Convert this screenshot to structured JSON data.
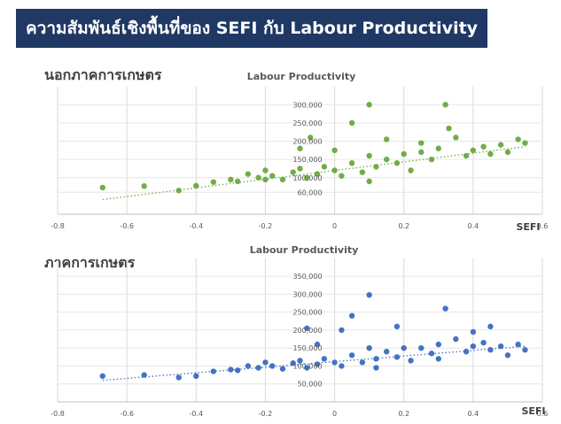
{
  "header": {
    "title": "ความสัมพันธ์เชิงพื้นที่ของ SEFI กับ Labour Productivity"
  },
  "colors": {
    "header_bg": "#1f3864",
    "series_nonagri": "#70ad47",
    "series_agri": "#4472c4"
  },
  "chart_data": [
    {
      "type": "scatter",
      "section_label": "นอกภาคการเกษตร",
      "title": "Labour Productivity",
      "xlabel": "SEFI",
      "ylabel": "",
      "xlim": [
        -0.8,
        0.6
      ],
      "ylim": [
        0,
        320000
      ],
      "x_ticks": [
        -0.8,
        -0.6,
        -0.4,
        -0.2,
        0,
        0.2,
        0.4,
        0.6
      ],
      "x_tick_labels": [
        "-0.8",
        "-0.6",
        "-0.4",
        "-0.2",
        "0",
        "0.2",
        "0.4",
        "0.6"
      ],
      "y_ticks": [
        60000,
        100000,
        150000,
        200000,
        250000,
        300000
      ],
      "y_tick_labels": [
        "60,000",
        "100,000",
        "150,000",
        "200,000",
        "250,000",
        "300,000"
      ],
      "grid": true,
      "trendline": {
        "x": [
          -0.67,
          0.55
        ],
        "y": [
          40000,
          185000
        ],
        "style": "dotted"
      },
      "points": [
        [
          -0.67,
          73000
        ],
        [
          -0.55,
          77000
        ],
        [
          -0.45,
          65000
        ],
        [
          -0.4,
          78000
        ],
        [
          -0.35,
          88000
        ],
        [
          -0.3,
          95000
        ],
        [
          -0.28,
          90000
        ],
        [
          -0.25,
          110000
        ],
        [
          -0.22,
          100000
        ],
        [
          -0.2,
          120000
        ],
        [
          -0.18,
          105000
        ],
        [
          -0.15,
          95000
        ],
        [
          -0.12,
          115000
        ],
        [
          -0.1,
          125000
        ],
        [
          -0.08,
          100000
        ],
        [
          -0.05,
          110000
        ],
        [
          -0.03,
          130000
        ],
        [
          0,
          120000
        ],
        [
          0.02,
          105000
        ],
        [
          0.05,
          140000
        ],
        [
          0.08,
          115000
        ],
        [
          0.1,
          160000
        ],
        [
          0.12,
          130000
        ],
        [
          0.15,
          150000
        ],
        [
          0.18,
          140000
        ],
        [
          0.2,
          165000
        ],
        [
          0.22,
          120000
        ],
        [
          0.25,
          170000
        ],
        [
          0.28,
          150000
        ],
        [
          0.3,
          180000
        ],
        [
          0.33,
          235000
        ],
        [
          0.35,
          210000
        ],
        [
          0.38,
          160000
        ],
        [
          0.4,
          175000
        ],
        [
          0.43,
          185000
        ],
        [
          0.45,
          165000
        ],
        [
          0.48,
          190000
        ],
        [
          0.5,
          170000
        ],
        [
          0.53,
          205000
        ],
        [
          0.55,
          195000
        ],
        [
          0.1,
          300000
        ],
        [
          0.32,
          300000
        ],
        [
          -0.07,
          210000
        ],
        [
          0.05,
          250000
        ],
        [
          -0.1,
          180000
        ],
        [
          0.15,
          205000
        ],
        [
          0.25,
          195000
        ],
        [
          0.0,
          175000
        ],
        [
          -0.2,
          95000
        ],
        [
          0.1,
          90000
        ]
      ]
    },
    {
      "type": "scatter",
      "section_label": "ภาคการเกษตร",
      "title": "Labour Productivity",
      "xlabel": "SEFI",
      "ylabel": "",
      "xlim": [
        -0.8,
        0.6
      ],
      "ylim": [
        0,
        370000
      ],
      "x_ticks": [
        -0.8,
        -0.6,
        -0.4,
        -0.2,
        0,
        0.2,
        0.4,
        0.6
      ],
      "x_tick_labels": [
        "-0.8",
        "-0.6",
        "-0.4",
        "-0.2",
        "0",
        "0.2",
        "0.4",
        "0.6"
      ],
      "y_ticks": [
        50000,
        100000,
        150000,
        200000,
        250000,
        300000,
        350000
      ],
      "y_tick_labels": [
        "50,000",
        "100,000",
        "150,000",
        "200,000",
        "250,000",
        "300,000",
        "350,000"
      ],
      "grid": true,
      "trendline": {
        "x": [
          -0.67,
          0.55
        ],
        "y": [
          60000,
          155000
        ],
        "style": "dotted"
      },
      "points": [
        [
          -0.67,
          72000
        ],
        [
          -0.55,
          75000
        ],
        [
          -0.45,
          68000
        ],
        [
          -0.4,
          72000
        ],
        [
          -0.35,
          85000
        ],
        [
          -0.3,
          90000
        ],
        [
          -0.28,
          88000
        ],
        [
          -0.25,
          100000
        ],
        [
          -0.22,
          95000
        ],
        [
          -0.2,
          110000
        ],
        [
          -0.18,
          100000
        ],
        [
          -0.15,
          92000
        ],
        [
          -0.12,
          108000
        ],
        [
          -0.1,
          115000
        ],
        [
          -0.08,
          95000
        ],
        [
          -0.05,
          105000
        ],
        [
          -0.03,
          120000
        ],
        [
          0,
          110000
        ],
        [
          0.02,
          100000
        ],
        [
          0.05,
          130000
        ],
        [
          0.08,
          110000
        ],
        [
          0.1,
          150000
        ],
        [
          0.12,
          120000
        ],
        [
          0.15,
          140000
        ],
        [
          0.18,
          125000
        ],
        [
          0.2,
          150000
        ],
        [
          0.22,
          115000
        ],
        [
          0.25,
          150000
        ],
        [
          0.28,
          135000
        ],
        [
          0.3,
          160000
        ],
        [
          0.32,
          260000
        ],
        [
          0.35,
          175000
        ],
        [
          0.38,
          140000
        ],
        [
          0.4,
          155000
        ],
        [
          0.43,
          165000
        ],
        [
          0.45,
          145000
        ],
        [
          0.48,
          155000
        ],
        [
          0.5,
          130000
        ],
        [
          0.53,
          160000
        ],
        [
          0.55,
          145000
        ],
        [
          0.1,
          298000
        ],
        [
          0.18,
          210000
        ],
        [
          -0.08,
          205000
        ],
        [
          0.02,
          200000
        ],
        [
          0.05,
          240000
        ],
        [
          0.4,
          195000
        ],
        [
          0.45,
          210000
        ],
        [
          -0.05,
          160000
        ],
        [
          0.12,
          95000
        ],
        [
          0.3,
          120000
        ]
      ]
    }
  ]
}
